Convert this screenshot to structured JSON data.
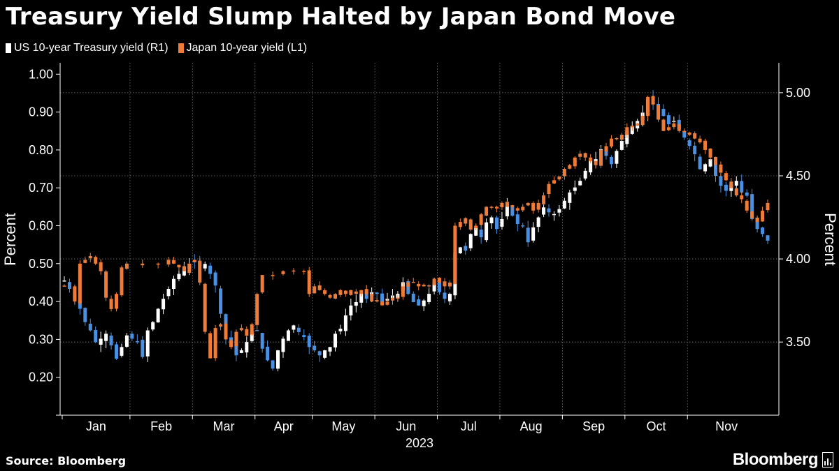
{
  "header": {
    "title": "Treasury Yield Slump Halted by Japan Bond Move"
  },
  "footer": {
    "source": "Source: Bloomberg",
    "brand": "Bloomberg"
  },
  "colors": {
    "us": "#ffffff",
    "us_down": "#4a90e2",
    "japan": "#ee7c38",
    "background": "#000000",
    "grid": "#777777"
  },
  "chart_data": {
    "type": "candlestick-line",
    "legend": [
      {
        "name": "US 10-year Treasury yield (R1)",
        "color": "#ffffff"
      },
      {
        "name": "Japan 10-year yield (L1)",
        "color": "#ee7c38"
      }
    ],
    "left_axis": {
      "label": "Percent",
      "ylim": [
        0.1,
        1.03
      ],
      "ticks": [
        "1.00",
        "0.90",
        "0.80",
        "0.70",
        "0.60",
        "0.50",
        "0.40",
        "0.30",
        "0.20"
      ]
    },
    "right_axis": {
      "label": "Percent",
      "ylim": [
        3.06,
        5.18
      ],
      "ticks": [
        "5.00",
        "4.50",
        "4.00",
        "3.50"
      ]
    },
    "x_axis": {
      "months": [
        "Jan",
        "Feb",
        "Mar",
        "Apr",
        "May",
        "Jun",
        "Jul",
        "Aug",
        "Sep",
        "Oct",
        "Nov"
      ],
      "year": "2023"
    },
    "series": [
      {
        "name": "Japan 10-year yield (L1)",
        "axis": "left",
        "points": [
          [
            0,
            0.44
          ],
          [
            2,
            0.4
          ],
          [
            3,
            0.5
          ],
          [
            4,
            0.51
          ],
          [
            5,
            0.52
          ],
          [
            6,
            0.5
          ],
          [
            7,
            0.48
          ],
          [
            8,
            0.41
          ],
          [
            9,
            0.38
          ],
          [
            10,
            0.42
          ],
          [
            11,
            0.49
          ],
          [
            12,
            0.5
          ],
          [
            15,
            0.5
          ],
          [
            18,
            0.5
          ],
          [
            20,
            0.51
          ],
          [
            21,
            0.5
          ],
          [
            22,
            0.49
          ],
          [
            23,
            0.48
          ],
          [
            24,
            0.5
          ],
          [
            25,
            0.51
          ],
          [
            26,
            0.45
          ],
          [
            27,
            0.32
          ],
          [
            28,
            0.25
          ],
          [
            29,
            0.33
          ],
          [
            30,
            0.34
          ],
          [
            31,
            0.3
          ],
          [
            32,
            0.28
          ],
          [
            33,
            0.32
          ],
          [
            34,
            0.33
          ],
          [
            35,
            0.31
          ],
          [
            36,
            0.34
          ],
          [
            37,
            0.42
          ],
          [
            38,
            0.47
          ],
          [
            40,
            0.47
          ],
          [
            42,
            0.48
          ],
          [
            44,
            0.48
          ],
          [
            46,
            0.48
          ],
          [
            47,
            0.42
          ],
          [
            48,
            0.44
          ],
          [
            49,
            0.43
          ],
          [
            50,
            0.42
          ],
          [
            51,
            0.41
          ],
          [
            52,
            0.42
          ],
          [
            53,
            0.43
          ],
          [
            54,
            0.42
          ],
          [
            55,
            0.43
          ],
          [
            56,
            0.42
          ],
          [
            57,
            0.43
          ],
          [
            58,
            0.42
          ],
          [
            59,
            0.4
          ],
          [
            60,
            0.4
          ],
          [
            61,
            0.39
          ],
          [
            62,
            0.4
          ],
          [
            63,
            0.41
          ],
          [
            64,
            0.41
          ],
          [
            65,
            0.44
          ],
          [
            66,
            0.45
          ],
          [
            67,
            0.45
          ],
          [
            68,
            0.44
          ],
          [
            69,
            0.44
          ],
          [
            70,
            0.44
          ],
          [
            71,
            0.46
          ],
          [
            72,
            0.45
          ],
          [
            73,
            0.44
          ],
          [
            74,
            0.45
          ],
          [
            75,
            0.6
          ],
          [
            76,
            0.61
          ],
          [
            77,
            0.62
          ],
          [
            78,
            0.59
          ],
          [
            79,
            0.6
          ],
          [
            80,
            0.63
          ],
          [
            81,
            0.65
          ],
          [
            82,
            0.65
          ],
          [
            83,
            0.65
          ],
          [
            84,
            0.66
          ],
          [
            85,
            0.65
          ],
          [
            86,
            0.65
          ],
          [
            87,
            0.64
          ],
          [
            88,
            0.65
          ],
          [
            89,
            0.66
          ],
          [
            90,
            0.64
          ],
          [
            91,
            0.66
          ],
          [
            92,
            0.68
          ],
          [
            93,
            0.71
          ],
          [
            94,
            0.72
          ],
          [
            95,
            0.73
          ],
          [
            96,
            0.75
          ],
          [
            97,
            0.76
          ],
          [
            98,
            0.78
          ],
          [
            99,
            0.79
          ],
          [
            100,
            0.78
          ],
          [
            101,
            0.77
          ],
          [
            102,
            0.76
          ],
          [
            103,
            0.8
          ],
          [
            104,
            0.81
          ],
          [
            105,
            0.83
          ],
          [
            106,
            0.83
          ],
          [
            107,
            0.84
          ],
          [
            108,
            0.86
          ],
          [
            109,
            0.86
          ],
          [
            110,
            0.87
          ],
          [
            111,
            0.89
          ],
          [
            112,
            0.94
          ],
          [
            113,
            0.92
          ],
          [
            114,
            0.88
          ],
          [
            115,
            0.85
          ],
          [
            116,
            0.86
          ],
          [
            117,
            0.87
          ],
          [
            118,
            0.85
          ],
          [
            119,
            0.85
          ],
          [
            120,
            0.84
          ],
          [
            121,
            0.83
          ],
          [
            122,
            0.82
          ],
          [
            123,
            0.8
          ],
          [
            124,
            0.78
          ],
          [
            125,
            0.76
          ],
          [
            126,
            0.74
          ],
          [
            127,
            0.72
          ],
          [
            128,
            0.7
          ],
          [
            129,
            0.68
          ],
          [
            130,
            0.67
          ],
          [
            131,
            0.64
          ],
          [
            132,
            0.62
          ],
          [
            133,
            0.61
          ],
          [
            134,
            0.64
          ],
          [
            135,
            0.66
          ]
        ]
      },
      {
        "name": "US 10-year Treasury yield (R1)",
        "axis": "right",
        "points": [
          [
            0,
            3.87
          ],
          [
            1,
            3.82
          ],
          [
            2,
            3.75
          ],
          [
            3,
            3.7
          ],
          [
            4,
            3.62
          ],
          [
            5,
            3.57
          ],
          [
            6,
            3.5
          ],
          [
            7,
            3.52
          ],
          [
            8,
            3.55
          ],
          [
            9,
            3.48
          ],
          [
            10,
            3.4
          ],
          [
            11,
            3.47
          ],
          [
            12,
            3.54
          ],
          [
            13,
            3.52
          ],
          [
            14,
            3.5
          ],
          [
            15,
            3.41
          ],
          [
            16,
            3.57
          ],
          [
            17,
            3.62
          ],
          [
            18,
            3.7
          ],
          [
            19,
            3.76
          ],
          [
            20,
            3.82
          ],
          [
            21,
            3.88
          ],
          [
            22,
            3.91
          ],
          [
            23,
            3.95
          ],
          [
            24,
            3.97
          ],
          [
            25,
            3.98
          ],
          [
            26,
            3.96
          ],
          [
            27,
            3.97
          ],
          [
            28,
            3.91
          ],
          [
            29,
            3.84
          ],
          [
            30,
            3.67
          ],
          [
            31,
            3.53
          ],
          [
            32,
            3.5
          ],
          [
            33,
            3.42
          ],
          [
            34,
            3.45
          ],
          [
            35,
            3.5
          ],
          [
            36,
            3.56
          ],
          [
            37,
            3.57
          ],
          [
            38,
            3.46
          ],
          [
            39,
            3.39
          ],
          [
            40,
            3.34
          ],
          [
            41,
            3.45
          ],
          [
            42,
            3.52
          ],
          [
            43,
            3.57
          ],
          [
            44,
            3.6
          ],
          [
            45,
            3.56
          ],
          [
            46,
            3.53
          ],
          [
            47,
            3.47
          ],
          [
            48,
            3.45
          ],
          [
            49,
            3.42
          ],
          [
            50,
            3.45
          ],
          [
            51,
            3.47
          ],
          [
            52,
            3.55
          ],
          [
            53,
            3.58
          ],
          [
            54,
            3.66
          ],
          [
            55,
            3.72
          ],
          [
            56,
            3.74
          ],
          [
            57,
            3.79
          ],
          [
            58,
            3.76
          ],
          [
            59,
            3.8
          ],
          [
            60,
            3.79
          ],
          [
            61,
            3.74
          ],
          [
            62,
            3.76
          ],
          [
            63,
            3.78
          ],
          [
            64,
            3.79
          ],
          [
            65,
            3.86
          ],
          [
            66,
            3.79
          ],
          [
            67,
            3.74
          ],
          [
            68,
            3.72
          ],
          [
            69,
            3.75
          ],
          [
            70,
            3.79
          ],
          [
            71,
            3.86
          ],
          [
            72,
            3.8
          ],
          [
            73,
            3.76
          ],
          [
            74,
            3.79
          ],
          [
            75,
            4.04
          ],
          [
            76,
            4.07
          ],
          [
            77,
            4.05
          ],
          [
            78,
            4.15
          ],
          [
            79,
            4.19
          ],
          [
            80,
            4.13
          ],
          [
            81,
            4.22
          ],
          [
            82,
            4.25
          ],
          [
            83,
            4.18
          ],
          [
            84,
            4.24
          ],
          [
            85,
            4.33
          ],
          [
            86,
            4.26
          ],
          [
            87,
            4.21
          ],
          [
            88,
            4.2
          ],
          [
            89,
            4.1
          ],
          [
            90,
            4.19
          ],
          [
            91,
            4.25
          ],
          [
            92,
            4.31
          ],
          [
            93,
            4.28
          ],
          [
            94,
            4.27
          ],
          [
            95,
            4.3
          ],
          [
            96,
            4.35
          ],
          [
            97,
            4.4
          ],
          [
            98,
            4.43
          ],
          [
            99,
            4.47
          ],
          [
            100,
            4.53
          ],
          [
            101,
            4.59
          ],
          [
            102,
            4.6
          ],
          [
            103,
            4.66
          ],
          [
            104,
            4.62
          ],
          [
            105,
            4.57
          ],
          [
            106,
            4.65
          ],
          [
            107,
            4.71
          ],
          [
            108,
            4.77
          ],
          [
            109,
            4.8
          ],
          [
            110,
            4.83
          ],
          [
            111,
            4.88
          ],
          [
            112,
            4.96
          ],
          [
            113,
            4.93
          ],
          [
            114,
            4.91
          ],
          [
            115,
            4.86
          ],
          [
            116,
            4.81
          ],
          [
            117,
            4.83
          ],
          [
            118,
            4.78
          ],
          [
            119,
            4.73
          ],
          [
            120,
            4.68
          ],
          [
            121,
            4.63
          ],
          [
            122,
            4.54
          ],
          [
            123,
            4.57
          ],
          [
            124,
            4.6
          ],
          [
            125,
            4.5
          ],
          [
            126,
            4.44
          ],
          [
            127,
            4.41
          ],
          [
            128,
            4.45
          ],
          [
            129,
            4.47
          ],
          [
            130,
            4.4
          ],
          [
            131,
            4.38
          ],
          [
            132,
            4.24
          ],
          [
            133,
            4.18
          ],
          [
            134,
            4.15
          ],
          [
            135,
            4.11
          ]
        ]
      }
    ]
  }
}
